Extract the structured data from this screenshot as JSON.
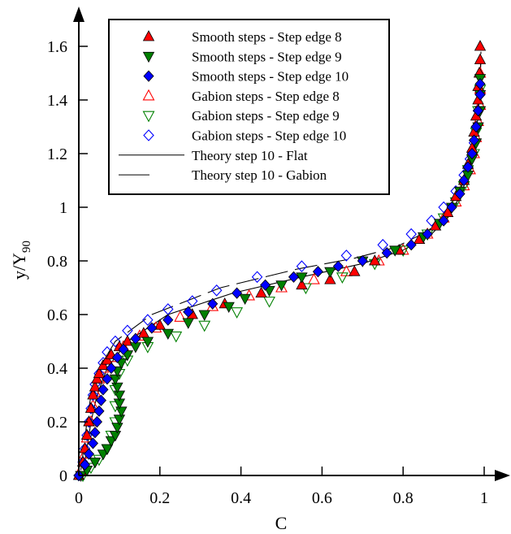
{
  "chart_data": {
    "type": "scatter",
    "xlabel": "C",
    "ylabel": "y/Y",
    "ylabel_sub": "90",
    "xlim": [
      0,
      1
    ],
    "ylim": [
      0,
      1.6
    ],
    "xticks": [
      {
        "v": 0,
        "label": "0"
      },
      {
        "v": 0.2,
        "label": "0.2"
      },
      {
        "v": 0.4,
        "label": "0.4"
      },
      {
        "v": 0.6,
        "label": "0.6"
      },
      {
        "v": 0.8,
        "label": "0.8"
      },
      {
        "v": 1,
        "label": "1"
      }
    ],
    "yticks": [
      {
        "v": 0,
        "label": "0"
      },
      {
        "v": 0.2,
        "label": "0.2"
      },
      {
        "v": 0.4,
        "label": "0.4"
      },
      {
        "v": 0.6,
        "label": "0.6"
      },
      {
        "v": 0.8,
        "label": "0.8"
      },
      {
        "v": 1,
        "label": "1"
      },
      {
        "v": 1.2,
        "label": "1.2"
      },
      {
        "v": 1.4,
        "label": "1.4"
      },
      {
        "v": 1.6,
        "label": "1.6"
      }
    ],
    "grid": false,
    "legend_position": "top-left",
    "series": [
      {
        "name": "Smooth steps - Step edge 8",
        "marker": "triangle-up",
        "filled": true,
        "color": "#ff0000",
        "points": [
          [
            0.0,
            0.0
          ],
          [
            0.01,
            0.05
          ],
          [
            0.015,
            0.1
          ],
          [
            0.02,
            0.15
          ],
          [
            0.025,
            0.2
          ],
          [
            0.03,
            0.25
          ],
          [
            0.035,
            0.3
          ],
          [
            0.04,
            0.33
          ],
          [
            0.045,
            0.36
          ],
          [
            0.05,
            0.38
          ],
          [
            0.06,
            0.41
          ],
          [
            0.07,
            0.43
          ],
          [
            0.08,
            0.45
          ],
          [
            0.1,
            0.48
          ],
          [
            0.12,
            0.5
          ],
          [
            0.16,
            0.53
          ],
          [
            0.2,
            0.56
          ],
          [
            0.28,
            0.6
          ],
          [
            0.36,
            0.64
          ],
          [
            0.45,
            0.68
          ],
          [
            0.55,
            0.71
          ],
          [
            0.62,
            0.73
          ],
          [
            0.68,
            0.76
          ],
          [
            0.73,
            0.8
          ],
          [
            0.79,
            0.84
          ],
          [
            0.84,
            0.88
          ],
          [
            0.88,
            0.93
          ],
          [
            0.91,
            0.98
          ],
          [
            0.93,
            1.04
          ],
          [
            0.95,
            1.1
          ],
          [
            0.96,
            1.16
          ],
          [
            0.97,
            1.22
          ],
          [
            0.975,
            1.28
          ],
          [
            0.98,
            1.34
          ],
          [
            0.985,
            1.4
          ],
          [
            0.985,
            1.45
          ],
          [
            0.988,
            1.5
          ],
          [
            0.99,
            1.55
          ],
          [
            0.99,
            1.6
          ]
        ]
      },
      {
        "name": "Smooth steps - Step edge 9",
        "marker": "triangle-down",
        "filled": true,
        "color": "#008000",
        "points": [
          [
            0.005,
            0.0
          ],
          [
            0.02,
            0.02
          ],
          [
            0.04,
            0.05
          ],
          [
            0.06,
            0.08
          ],
          [
            0.07,
            0.1
          ],
          [
            0.08,
            0.13
          ],
          [
            0.09,
            0.15
          ],
          [
            0.095,
            0.18
          ],
          [
            0.1,
            0.21
          ],
          [
            0.105,
            0.24
          ],
          [
            0.1,
            0.27
          ],
          [
            0.1,
            0.3
          ],
          [
            0.095,
            0.33
          ],
          [
            0.09,
            0.36
          ],
          [
            0.095,
            0.39
          ],
          [
            0.105,
            0.42
          ],
          [
            0.12,
            0.45
          ],
          [
            0.14,
            0.48
          ],
          [
            0.17,
            0.5
          ],
          [
            0.22,
            0.53
          ],
          [
            0.27,
            0.57
          ],
          [
            0.31,
            0.6
          ],
          [
            0.37,
            0.63
          ],
          [
            0.41,
            0.66
          ],
          [
            0.47,
            0.69
          ],
          [
            0.5,
            0.71
          ],
          [
            0.55,
            0.74
          ],
          [
            0.62,
            0.76
          ],
          [
            0.7,
            0.8
          ],
          [
            0.78,
            0.84
          ],
          [
            0.85,
            0.89
          ],
          [
            0.89,
            0.94
          ],
          [
            0.92,
            1.0
          ],
          [
            0.94,
            1.06
          ],
          [
            0.96,
            1.12
          ],
          [
            0.97,
            1.18
          ],
          [
            0.98,
            1.24
          ],
          [
            0.985,
            1.3
          ],
          [
            0.99,
            1.36
          ],
          [
            0.99,
            1.42
          ],
          [
            0.99,
            1.48
          ]
        ]
      },
      {
        "name": "Smooth steps - Step edge 10",
        "marker": "diamond",
        "filled": true,
        "color": "#0000ff",
        "points": [
          [
            0.0,
            0.0
          ],
          [
            0.015,
            0.04
          ],
          [
            0.025,
            0.08
          ],
          [
            0.035,
            0.12
          ],
          [
            0.04,
            0.16
          ],
          [
            0.045,
            0.2
          ],
          [
            0.05,
            0.24
          ],
          [
            0.055,
            0.28
          ],
          [
            0.06,
            0.32
          ],
          [
            0.07,
            0.36
          ],
          [
            0.08,
            0.4
          ],
          [
            0.095,
            0.44
          ],
          [
            0.11,
            0.47
          ],
          [
            0.14,
            0.51
          ],
          [
            0.18,
            0.55
          ],
          [
            0.22,
            0.58
          ],
          [
            0.27,
            0.61
          ],
          [
            0.33,
            0.64
          ],
          [
            0.39,
            0.68
          ],
          [
            0.46,
            0.71
          ],
          [
            0.53,
            0.74
          ],
          [
            0.59,
            0.76
          ],
          [
            0.64,
            0.78
          ],
          [
            0.7,
            0.8
          ],
          [
            0.76,
            0.83
          ],
          [
            0.82,
            0.86
          ],
          [
            0.86,
            0.9
          ],
          [
            0.9,
            0.95
          ],
          [
            0.92,
            1.0
          ],
          [
            0.94,
            1.05
          ],
          [
            0.95,
            1.1
          ],
          [
            0.96,
            1.15
          ],
          [
            0.97,
            1.2
          ],
          [
            0.975,
            1.25
          ],
          [
            0.98,
            1.3
          ],
          [
            0.985,
            1.36
          ],
          [
            0.99,
            1.42
          ],
          [
            0.99,
            1.46
          ]
        ]
      },
      {
        "name": "Gabion steps - Step edge 8",
        "marker": "triangle-up",
        "filled": false,
        "color": "#ff0000",
        "points": [
          [
            0.005,
            0.02
          ],
          [
            0.015,
            0.08
          ],
          [
            0.02,
            0.14
          ],
          [
            0.03,
            0.2
          ],
          [
            0.035,
            0.26
          ],
          [
            0.04,
            0.31
          ],
          [
            0.05,
            0.36
          ],
          [
            0.06,
            0.4
          ],
          [
            0.08,
            0.44
          ],
          [
            0.11,
            0.48
          ],
          [
            0.15,
            0.52
          ],
          [
            0.19,
            0.55
          ],
          [
            0.25,
            0.59
          ],
          [
            0.33,
            0.63
          ],
          [
            0.42,
            0.67
          ],
          [
            0.5,
            0.7
          ],
          [
            0.58,
            0.73
          ],
          [
            0.66,
            0.76
          ],
          [
            0.74,
            0.8
          ],
          [
            0.8,
            0.84
          ],
          [
            0.86,
            0.9
          ],
          [
            0.9,
            0.96
          ],
          [
            0.93,
            1.02
          ],
          [
            0.95,
            1.08
          ],
          [
            0.965,
            1.14
          ],
          [
            0.975,
            1.2
          ],
          [
            0.98,
            1.26
          ],
          [
            0.985,
            1.32
          ],
          [
            0.99,
            1.38
          ],
          [
            0.99,
            1.44
          ],
          [
            0.99,
            1.5
          ]
        ]
      },
      {
        "name": "Gabion steps - Step edge 9",
        "marker": "triangle-down",
        "filled": false,
        "color": "#008000",
        "points": [
          [
            0.01,
            0.0
          ],
          [
            0.03,
            0.03
          ],
          [
            0.05,
            0.06
          ],
          [
            0.07,
            0.1
          ],
          [
            0.08,
            0.15
          ],
          [
            0.09,
            0.2
          ],
          [
            0.09,
            0.26
          ],
          [
            0.09,
            0.32
          ],
          [
            0.1,
            0.38
          ],
          [
            0.12,
            0.43
          ],
          [
            0.17,
            0.48
          ],
          [
            0.24,
            0.52
          ],
          [
            0.31,
            0.56
          ],
          [
            0.39,
            0.61
          ],
          [
            0.47,
            0.65
          ],
          [
            0.56,
            0.7
          ],
          [
            0.65,
            0.74
          ],
          [
            0.73,
            0.79
          ],
          [
            0.8,
            0.84
          ],
          [
            0.86,
            0.9
          ],
          [
            0.9,
            0.96
          ],
          [
            0.93,
            1.02
          ],
          [
            0.95,
            1.08
          ],
          [
            0.96,
            1.14
          ],
          [
            0.975,
            1.2
          ],
          [
            0.98,
            1.28
          ],
          [
            0.985,
            1.36
          ],
          [
            0.99,
            1.44
          ]
        ]
      },
      {
        "name": "Gabion steps - Step edge 10",
        "marker": "diamond",
        "filled": false,
        "color": "#0000ff",
        "points": [
          [
            0.0,
            0.0
          ],
          [
            0.01,
            0.05
          ],
          [
            0.015,
            0.1
          ],
          [
            0.02,
            0.15
          ],
          [
            0.025,
            0.2
          ],
          [
            0.03,
            0.25
          ],
          [
            0.035,
            0.3
          ],
          [
            0.04,
            0.34
          ],
          [
            0.05,
            0.38
          ],
          [
            0.06,
            0.42
          ],
          [
            0.07,
            0.46
          ],
          [
            0.09,
            0.5
          ],
          [
            0.12,
            0.54
          ],
          [
            0.17,
            0.58
          ],
          [
            0.22,
            0.62
          ],
          [
            0.28,
            0.65
          ],
          [
            0.34,
            0.69
          ],
          [
            0.44,
            0.74
          ],
          [
            0.55,
            0.78
          ],
          [
            0.66,
            0.82
          ],
          [
            0.75,
            0.86
          ],
          [
            0.82,
            0.9
          ],
          [
            0.87,
            0.95
          ],
          [
            0.9,
            1.0
          ],
          [
            0.93,
            1.06
          ],
          [
            0.95,
            1.12
          ],
          [
            0.965,
            1.18
          ],
          [
            0.975,
            1.24
          ],
          [
            0.98,
            1.3
          ],
          [
            0.985,
            1.36
          ],
          [
            0.99,
            1.42
          ]
        ]
      },
      {
        "name": "Theory step 10 - Flat",
        "marker": "none",
        "line": "solid",
        "color": "#000000",
        "points": [
          [
            0.012,
            0.02
          ],
          [
            0.02,
            0.1
          ],
          [
            0.03,
            0.2
          ],
          [
            0.045,
            0.3
          ],
          [
            0.07,
            0.4
          ],
          [
            0.12,
            0.5
          ],
          [
            0.22,
            0.6
          ],
          [
            0.38,
            0.68
          ],
          [
            0.55,
            0.74
          ],
          [
            0.7,
            0.79
          ],
          [
            0.8,
            0.84
          ],
          [
            0.87,
            0.9
          ],
          [
            0.91,
            0.96
          ],
          [
            0.94,
            1.04
          ],
          [
            0.96,
            1.12
          ],
          [
            0.975,
            1.22
          ],
          [
            0.985,
            1.34
          ],
          [
            0.99,
            1.46
          ],
          [
            0.992,
            1.56
          ]
        ]
      },
      {
        "name": "Theory step 10 - Gabion",
        "marker": "none",
        "line": "dashed",
        "color": "#000000",
        "points": [
          [
            0.005,
            0.02
          ],
          [
            0.012,
            0.1
          ],
          [
            0.02,
            0.2
          ],
          [
            0.03,
            0.3
          ],
          [
            0.05,
            0.4
          ],
          [
            0.09,
            0.5
          ],
          [
            0.18,
            0.6
          ],
          [
            0.35,
            0.7
          ],
          [
            0.54,
            0.77
          ],
          [
            0.68,
            0.81
          ],
          [
            0.78,
            0.85
          ],
          [
            0.86,
            0.91
          ],
          [
            0.91,
            0.98
          ],
          [
            0.94,
            1.06
          ],
          [
            0.96,
            1.14
          ],
          [
            0.975,
            1.24
          ],
          [
            0.985,
            1.36
          ],
          [
            0.99,
            1.48
          ],
          [
            0.992,
            1.58
          ]
        ]
      }
    ]
  }
}
